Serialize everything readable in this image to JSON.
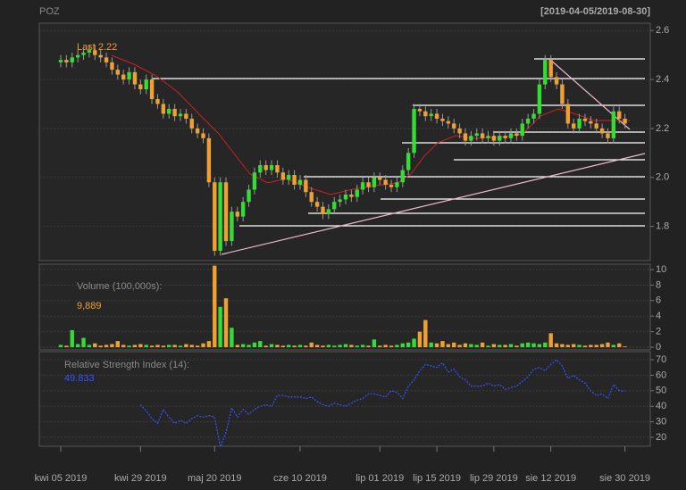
{
  "chart_data": [
    {
      "type": "candlestick",
      "title": "POZ",
      "subtitle": "[2019-04-05/2019-08-30]",
      "annotation": "Last 2.22",
      "up_color": "#33dd33",
      "down_color": "#f0a030",
      "grid": true,
      "ylim": [
        1.66,
        2.63
      ],
      "yticks": [
        1.8,
        {
          "value": 2,
          "label": "2.0"
        },
        2.2,
        2.4,
        2.6
      ],
      "xticks": [
        {
          "value": 0,
          "label": "kwi 05 2019"
        },
        {
          "value": 14,
          "label": "kwi 29 2019"
        },
        {
          "value": 27,
          "label": "maj 20 2019"
        },
        {
          "value": 42,
          "label": "cze 10 2019"
        },
        {
          "value": 56,
          "label": "lip 01 2019"
        },
        {
          "value": 66,
          "label": "lip 15 2019"
        },
        {
          "value": 76,
          "label": "lip 29 2019"
        },
        {
          "value": 86,
          "label": "sie 12 2019"
        },
        {
          "value": 99,
          "label": "sie 30 2019"
        }
      ],
      "ohlc": [
        [
          2.47,
          2.5,
          2.45,
          2.48
        ],
        [
          2.48,
          2.5,
          2.45,
          2.47
        ],
        [
          2.47,
          2.51,
          2.45,
          2.49
        ],
        [
          2.49,
          2.52,
          2.47,
          2.5
        ],
        [
          2.5,
          2.53,
          2.48,
          2.51
        ],
        [
          2.51,
          2.54,
          2.49,
          2.52
        ],
        [
          2.52,
          2.54,
          2.48,
          2.5
        ],
        [
          2.5,
          2.52,
          2.47,
          2.49
        ],
        [
          2.49,
          2.51,
          2.45,
          2.47
        ],
        [
          2.47,
          2.49,
          2.42,
          2.44
        ],
        [
          2.44,
          2.46,
          2.4,
          2.42
        ],
        [
          2.42,
          2.44,
          2.38,
          2.4
        ],
        [
          2.4,
          2.45,
          2.38,
          2.43
        ],
        [
          2.43,
          2.45,
          2.36,
          2.38
        ],
        [
          2.38,
          2.4,
          2.34,
          2.36
        ],
        [
          2.36,
          2.42,
          2.34,
          2.4
        ],
        [
          2.4,
          2.42,
          2.3,
          2.32
        ],
        [
          2.32,
          2.34,
          2.28,
          2.3
        ],
        [
          2.3,
          2.32,
          2.24,
          2.26
        ],
        [
          2.26,
          2.3,
          2.24,
          2.28
        ],
        [
          2.28,
          2.3,
          2.23,
          2.25
        ],
        [
          2.25,
          2.28,
          2.23,
          2.26
        ],
        [
          2.26,
          2.28,
          2.22,
          2.24
        ],
        [
          2.24,
          2.26,
          2.18,
          2.2
        ],
        [
          2.2,
          2.22,
          2.16,
          2.18
        ],
        [
          2.18,
          2.2,
          2.14,
          2.16
        ],
        [
          2.16,
          2.18,
          1.96,
          1.98
        ],
        [
          1.98,
          2.0,
          1.68,
          1.7
        ],
        [
          1.7,
          2.0,
          1.68,
          1.98
        ],
        [
          1.98,
          2.0,
          1.72,
          1.74
        ],
        [
          1.74,
          1.88,
          1.72,
          1.86
        ],
        [
          1.86,
          1.88,
          1.82,
          1.84
        ],
        [
          1.84,
          1.92,
          1.82,
          1.9
        ],
        [
          1.9,
          1.97,
          1.88,
          1.95
        ],
        [
          1.95,
          2.04,
          1.93,
          2.02
        ],
        [
          2.02,
          2.07,
          2.0,
          2.05
        ],
        [
          2.05,
          2.07,
          2.01,
          2.03
        ],
        [
          2.03,
          2.07,
          2.01,
          2.05
        ],
        [
          2.05,
          2.07,
          2.0,
          2.02
        ],
        [
          2.02,
          2.04,
          1.97,
          1.99
        ],
        [
          1.99,
          2.03,
          1.97,
          2.01
        ],
        [
          2.01,
          2.03,
          1.95,
          1.97
        ],
        [
          1.97,
          2.01,
          1.95,
          1.99
        ],
        [
          1.99,
          2.01,
          1.92,
          1.94
        ],
        [
          1.94,
          1.96,
          1.88,
          1.9
        ],
        [
          1.9,
          1.92,
          1.86,
          1.88
        ],
        [
          1.88,
          1.9,
          1.83,
          1.85
        ],
        [
          1.85,
          1.89,
          1.83,
          1.87
        ],
        [
          1.87,
          1.92,
          1.85,
          1.9
        ],
        [
          1.9,
          1.93,
          1.88,
          1.91
        ],
        [
          1.91,
          1.95,
          1.89,
          1.93
        ],
        [
          1.93,
          1.95,
          1.9,
          1.92
        ],
        [
          1.92,
          1.97,
          1.9,
          1.95
        ],
        [
          1.95,
          2.0,
          1.93,
          1.98
        ],
        [
          1.98,
          2.0,
          1.94,
          1.96
        ],
        [
          1.96,
          2.02,
          1.94,
          2.0
        ],
        [
          2.0,
          2.02,
          1.97,
          1.99
        ],
        [
          1.99,
          2.01,
          1.95,
          1.97
        ],
        [
          1.97,
          1.99,
          1.94,
          1.96
        ],
        [
          1.96,
          2.0,
          1.94,
          1.98
        ],
        [
          1.98,
          2.05,
          1.96,
          2.03
        ],
        [
          2.03,
          2.12,
          2.01,
          2.1
        ],
        [
          2.1,
          2.3,
          2.08,
          2.28
        ],
        [
          2.28,
          2.3,
          2.25,
          2.27
        ],
        [
          2.27,
          2.29,
          2.23,
          2.25
        ],
        [
          2.25,
          2.28,
          2.23,
          2.26
        ],
        [
          2.26,
          2.28,
          2.22,
          2.24
        ],
        [
          2.24,
          2.26,
          2.21,
          2.23
        ],
        [
          2.23,
          2.25,
          2.2,
          2.22
        ],
        [
          2.22,
          2.24,
          2.18,
          2.2
        ],
        [
          2.2,
          2.22,
          2.16,
          2.18
        ],
        [
          2.18,
          2.2,
          2.13,
          2.15
        ],
        [
          2.15,
          2.19,
          2.13,
          2.17
        ],
        [
          2.17,
          2.2,
          2.15,
          2.18
        ],
        [
          2.18,
          2.2,
          2.14,
          2.16
        ],
        [
          2.16,
          2.19,
          2.14,
          2.17
        ],
        [
          2.17,
          2.19,
          2.13,
          2.15
        ],
        [
          2.15,
          2.19,
          2.13,
          2.17
        ],
        [
          2.17,
          2.19,
          2.14,
          2.16
        ],
        [
          2.16,
          2.2,
          2.14,
          2.18
        ],
        [
          2.18,
          2.2,
          2.15,
          2.17
        ],
        [
          2.17,
          2.24,
          2.15,
          2.22
        ],
        [
          2.22,
          2.26,
          2.2,
          2.24
        ],
        [
          2.24,
          2.28,
          2.22,
          2.26
        ],
        [
          2.26,
          2.4,
          2.24,
          2.38
        ],
        [
          2.38,
          2.5,
          2.36,
          2.48
        ],
        [
          2.48,
          2.5,
          2.39,
          2.41
        ],
        [
          2.41,
          2.43,
          2.36,
          2.38
        ],
        [
          2.38,
          2.4,
          2.28,
          2.3
        ],
        [
          2.3,
          2.32,
          2.2,
          2.22
        ],
        [
          2.22,
          2.24,
          2.18,
          2.2
        ],
        [
          2.2,
          2.26,
          2.18,
          2.24
        ],
        [
          2.24,
          2.26,
          2.21,
          2.23
        ],
        [
          2.23,
          2.25,
          2.2,
          2.22
        ],
        [
          2.22,
          2.24,
          2.18,
          2.2
        ],
        [
          2.2,
          2.22,
          2.16,
          2.18
        ],
        [
          2.18,
          2.2,
          2.14,
          2.16
        ],
        [
          2.16,
          2.29,
          2.14,
          2.27
        ],
        [
          2.27,
          2.29,
          2.22,
          2.24
        ],
        [
          2.24,
          2.26,
          2.2,
          2.22
        ]
      ]
    },
    {
      "type": "bar",
      "annotation": "Volume (100,000s):",
      "annotation_value": "9,889",
      "grid": true,
      "ylim": [
        -0.34,
        10.69
      ],
      "yticks": [
        0,
        2,
        4,
        6,
        8,
        10
      ],
      "values": [
        0.3,
        0.2,
        2.2,
        0.4,
        1.2,
        0.3,
        0.5,
        0.2,
        0.3,
        0.4,
        0.8,
        0.3,
        0.2,
        0.3,
        0.4,
        0.3,
        0.2,
        0.3,
        0.2,
        0.3,
        0.3,
        0.2,
        0.4,
        0.3,
        0.2,
        0.5,
        0.8,
        10.5,
        5.2,
        6.3,
        2.5,
        0.3,
        0.4,
        0.3,
        0.6,
        0.8,
        0.2,
        0.4,
        0.3,
        0.2,
        0.3,
        0.2,
        0.3,
        0.2,
        0.6,
        0.3,
        0.2,
        0.3,
        0.2,
        0.3,
        0.4,
        0.3,
        0.2,
        0.3,
        0.2,
        1.0,
        0.2,
        0.3,
        0.2,
        0.3,
        0.5,
        0.6,
        1.1,
        2.0,
        3.5,
        0.6,
        0.5,
        0.8,
        0.4,
        0.6,
        0.3,
        0.5,
        0.4,
        0.3,
        0.6,
        0.2,
        0.4,
        0.3,
        0.3,
        0.4,
        0.2,
        0.5,
        0.6,
        0.5,
        0.4,
        0.6,
        1.8,
        0.5,
        0.4,
        0.3,
        0.4,
        0.3,
        0.2,
        0.3,
        0.3,
        0.4,
        0.6,
        0.3,
        0.5,
        0.09889
      ]
    },
    {
      "type": "line",
      "annotation": "Relative Strength Index (14):",
      "annotation_value": "49.833",
      "color": "#3355ff",
      "grid": true,
      "ylim": [
        14.25,
        75.2
      ],
      "yticks": [
        20,
        30,
        40,
        50,
        60,
        70
      ],
      "values": [
        null,
        null,
        null,
        null,
        null,
        null,
        null,
        null,
        null,
        null,
        null,
        null,
        null,
        null,
        41,
        37,
        32,
        29,
        38,
        33,
        29,
        31,
        29,
        32,
        34,
        33,
        34,
        33,
        14,
        23,
        39,
        33,
        38,
        35,
        38,
        40,
        41,
        40,
        47,
        47,
        46,
        46,
        46,
        45,
        46,
        43,
        41,
        40,
        42,
        41,
        40,
        42,
        44,
        45,
        48,
        48,
        47,
        46,
        50,
        49,
        45,
        53,
        57,
        63,
        67,
        66,
        65,
        68,
        62,
        64,
        59,
        57,
        53,
        53,
        53,
        55,
        53,
        54,
        51,
        52,
        53,
        56,
        59,
        64,
        65,
        63,
        67,
        70,
        66,
        58,
        60,
        57,
        55,
        50,
        47,
        48,
        45,
        54,
        50,
        49.833
      ]
    }
  ]
}
